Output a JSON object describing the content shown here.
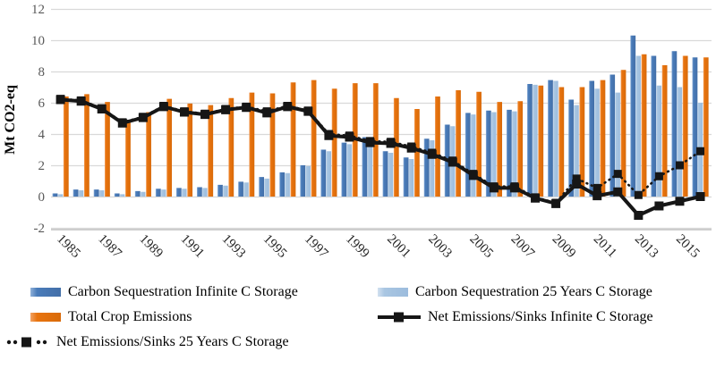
{
  "chart_data": {
    "type": "bar",
    "subtype": "grouped-bars-with-lines-combo",
    "title": "",
    "xlabel": "",
    "ylabel": "Mt CO2-eq",
    "ylim": [
      -2,
      12
    ],
    "yticks": [
      -2,
      0,
      2,
      4,
      6,
      8,
      10,
      12
    ],
    "grid": "horizontal",
    "legend_position": "bottom",
    "categories": [
      1985,
      1986,
      1987,
      1988,
      1989,
      1990,
      1991,
      1992,
      1993,
      1994,
      1995,
      1996,
      1997,
      1998,
      1999,
      2000,
      2001,
      2002,
      2003,
      2004,
      2005,
      2006,
      2007,
      2008,
      2009,
      2010,
      2011,
      2012,
      2013,
      2014,
      2015,
      2016
    ],
    "xtick_labels": [
      "1985",
      "1987",
      "1989",
      "1991",
      "1993",
      "1995",
      "1997",
      "1999",
      "2001",
      "2003",
      "2005",
      "2007",
      "2009",
      "2011",
      "2013",
      "2015"
    ],
    "series": [
      {
        "name": "Carbon Sequestration Infinite C Storage",
        "type": "bar",
        "color": "#4a7cba",
        "values": [
          0.2,
          0.45,
          0.45,
          0.2,
          0.35,
          0.5,
          0.55,
          0.6,
          0.75,
          0.95,
          1.25,
          1.55,
          2.0,
          3.0,
          3.45,
          3.8,
          2.9,
          2.5,
          3.7,
          4.6,
          5.35,
          5.5,
          5.55,
          7.2,
          7.45,
          6.2,
          7.4,
          7.8,
          10.3,
          9.0,
          9.3,
          8.9
        ]
      },
      {
        "name": "Carbon Sequestration 25 Years C Storage",
        "type": "bar",
        "color": "#a9c6e2",
        "values": [
          0.15,
          0.4,
          0.4,
          0.15,
          0.3,
          0.45,
          0.5,
          0.55,
          0.7,
          0.9,
          1.15,
          1.5,
          1.95,
          2.9,
          3.35,
          3.7,
          2.8,
          2.4,
          3.6,
          4.5,
          5.25,
          5.4,
          5.45,
          7.15,
          7.4,
          5.85,
          6.9,
          6.65,
          9.0,
          7.1,
          7.0,
          6.0
        ]
      },
      {
        "name": "Total Crop Emissions",
        "type": "bar",
        "color": "#e8740f",
        "values": [
          6.4,
          6.55,
          6.05,
          4.9,
          5.4,
          6.25,
          5.95,
          5.85,
          6.3,
          6.65,
          6.6,
          7.3,
          7.45,
          6.9,
          7.25,
          7.25,
          6.3,
          5.6,
          6.4,
          6.8,
          6.7,
          6.05,
          6.1,
          7.1,
          7.0,
          7.0,
          7.45,
          8.1,
          9.1,
          8.4,
          9.0,
          8.9
        ]
      },
      {
        "name": "Net Emissions/Sinks Infinite C Storage",
        "type": "line-solid-square-markers",
        "color": "#161616",
        "values": [
          6.2,
          6.1,
          5.6,
          4.7,
          5.05,
          5.75,
          5.4,
          5.25,
          5.55,
          5.7,
          5.35,
          5.75,
          5.45,
          3.9,
          3.8,
          3.45,
          3.4,
          3.1,
          2.7,
          2.2,
          1.35,
          0.55,
          0.55,
          -0.1,
          -0.45,
          0.8,
          0.05,
          0.3,
          -1.2,
          -0.6,
          -0.3,
          0.0
        ]
      },
      {
        "name": "Net Emissions/Sinks 25 Years C Storage",
        "type": "line-dotted-square-markers",
        "color": "#161616",
        "values": [
          6.25,
          6.15,
          5.65,
          4.75,
          5.1,
          5.8,
          5.45,
          5.3,
          5.6,
          5.75,
          5.45,
          5.8,
          5.5,
          4.0,
          3.9,
          3.55,
          3.5,
          3.2,
          2.8,
          2.3,
          1.45,
          0.65,
          0.65,
          -0.05,
          -0.4,
          1.15,
          0.55,
          1.45,
          0.1,
          1.3,
          2.0,
          2.9
        ]
      }
    ],
    "colors": {
      "gridline": "#d9d9d9",
      "axis_line": "#bfbfbf",
      "tick_label": "#595959",
      "x_label": "#262626",
      "axis_title": "#000000"
    }
  }
}
